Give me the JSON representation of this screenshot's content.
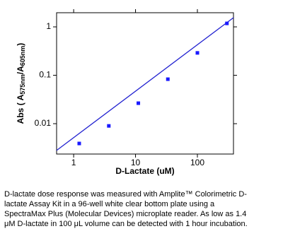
{
  "chart_data": {
    "type": "scatter",
    "x_label": "D-Lactate (uM)",
    "y_label": [
      "Abs ( A",
      "575nm",
      "/A",
      "605nm",
      ")"
    ],
    "x": [
      1.23,
      3.7,
      11.1,
      33.3,
      100,
      300
    ],
    "series": [
      {
        "color": "#1a1aff",
        "values": [
          0.0039,
          0.009,
          0.0265,
          0.083,
          0.29,
          1.18
        ]
      }
    ],
    "fit_line": {
      "color": "#2020d0",
      "x": [
        0.53,
        383
      ],
      "values": [
        0.0028,
        1.55
      ]
    },
    "xlim": [
      0.53,
      383
    ],
    "ylim": [
      0.00236,
      1.96
    ],
    "xticks": [
      1,
      10,
      100
    ],
    "yticks": [
      0.01,
      0.1,
      1
    ],
    "log_x": true,
    "log_y": true
  },
  "caption": {
    "lines": [
      "D-lactate dose response was measured with Amplite™ Colorimetric D-",
      "lactate Assay Kit in a 96-well white clear bottom plate using a",
      "SpectraMax Plus (Molecular Devices) microplate reader. As low as 1.4",
      "μM D-lactate in 100 μL volume can be detected with 1 hour incubation."
    ]
  }
}
